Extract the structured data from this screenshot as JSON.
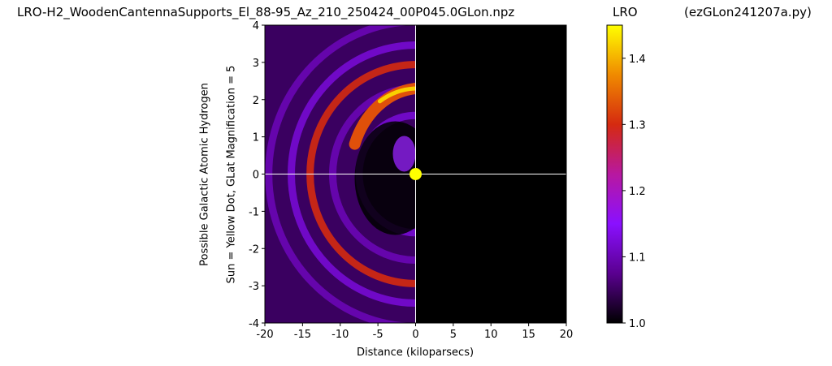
{
  "chart_data": {
    "type": "heatmap",
    "title": "LRO-H2_WoodenCantennaSupports_El_88-95_Az_210_250424_00P045.0GLon.npz",
    "script_name": "(ezGLon241207a.py)",
    "xlabel": "Distance (kiloparsecs)",
    "ylabel_lines": [
      "Possible Galactic Atomic Hydrogen",
      "Sun = Yellow Dot, GLat Magnification = 5"
    ],
    "xlim": [
      -20,
      20
    ],
    "ylim": [
      -4,
      4
    ],
    "xticks": [
      -20,
      -15,
      -10,
      -5,
      0,
      5,
      10,
      15,
      20
    ],
    "xtick_labels": [
      "-20",
      "-15",
      "-10",
      "-5",
      "0",
      "5",
      "10",
      "15",
      "20"
    ],
    "yticks": [
      4,
      3,
      2,
      1,
      0,
      -1,
      -2,
      -3,
      -4
    ],
    "ytick_labels": [
      "4",
      "3",
      "2",
      "1",
      "0",
      "-1",
      "-2",
      "-3",
      "-4"
    ],
    "sun_position": [
      0,
      0
    ],
    "sun_color": "#ffff00",
    "background_color": "#000000",
    "crosshair_color": "#ffffff",
    "colormap": "gnuplot",
    "colorbar": {
      "label": "LRO",
      "range": [
        1.0,
        1.45
      ],
      "ticks": [
        1.0,
        1.1,
        1.2,
        1.3,
        1.4
      ],
      "tick_labels": [
        "1.0",
        "1.1",
        "1.2",
        "1.3",
        "1.4"
      ],
      "stops": [
        "#000000",
        "#5a0090",
        "#8a10ff",
        "#b818a0",
        "#d52a10",
        "#f08a00",
        "#ffff00"
      ]
    },
    "arcs": [
      {
        "r": 19.5,
        "value": 1.1
      },
      {
        "r": 16.5,
        "value": 1.12
      },
      {
        "r": 14.0,
        "value": 1.3
      },
      {
        "r": 11.0,
        "value": 1.1
      },
      {
        "r": 7.5,
        "value": 1.12
      }
    ]
  }
}
